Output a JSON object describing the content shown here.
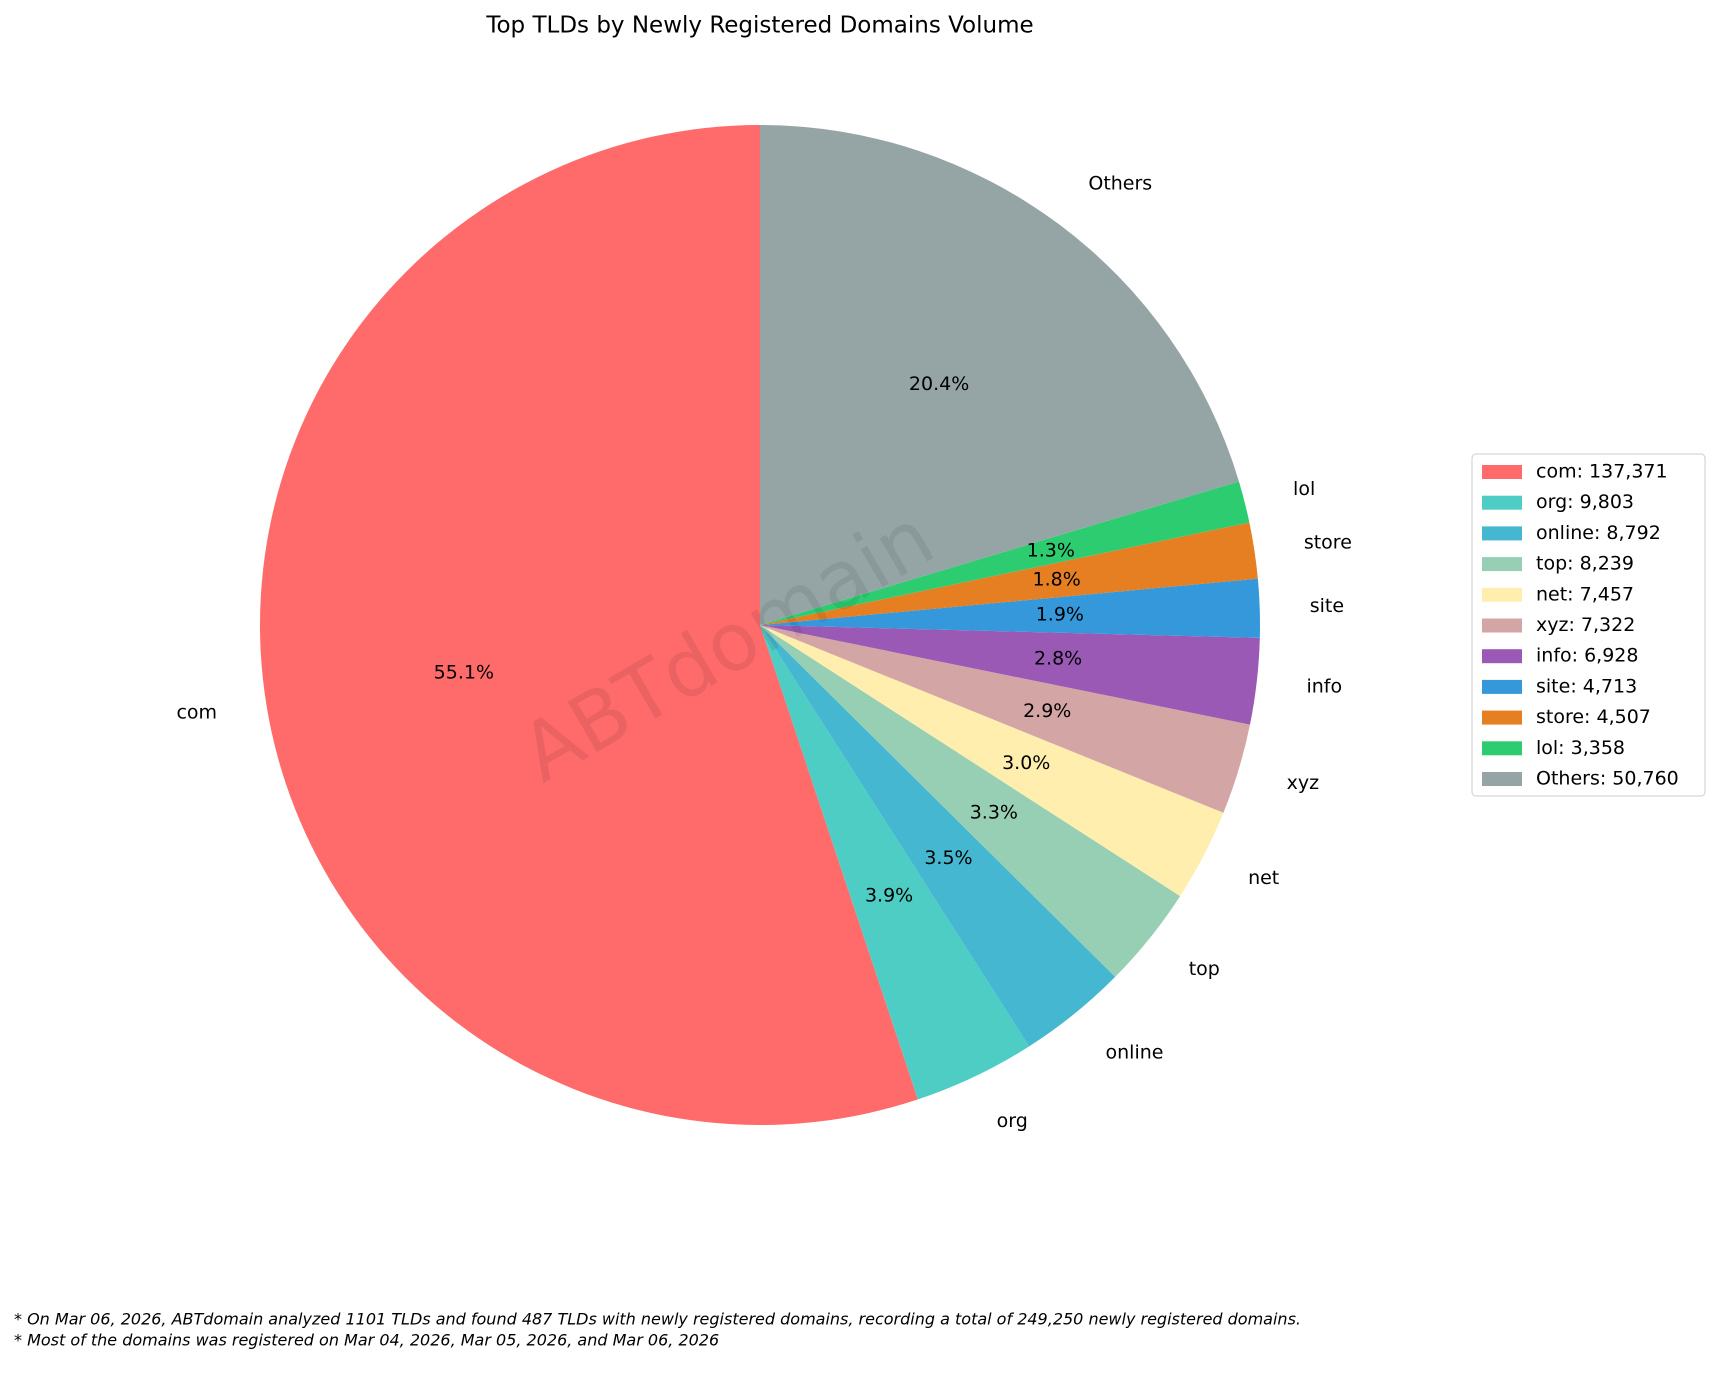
{
  "chart_data": {
    "type": "pie",
    "title": "Top TLDs by Newly Registered Domains Volume",
    "categories": [
      "com",
      "org",
      "online",
      "top",
      "net",
      "xyz",
      "info",
      "site",
      "store",
      "lol",
      "Others"
    ],
    "values": [
      137371,
      9803,
      8792,
      8239,
      7457,
      7322,
      6928,
      4713,
      4507,
      3358,
      50760
    ],
    "colors": [
      "#ff6b6b",
      "#4ecdc4",
      "#45b7d1",
      "#96cfb4",
      "#ffeead",
      "#d4a5a5",
      "#9b59b6",
      "#3498db",
      "#e67e22",
      "#2ecc71",
      "#95a5a6"
    ],
    "percents": [
      55.1,
      3.9,
      3.5,
      3.3,
      3.0,
      2.9,
      2.8,
      1.9,
      1.8,
      1.3,
      20.4
    ],
    "percent_labels": [
      "55.1%",
      "3.9%",
      "3.5%",
      "3.3%",
      "3.0%",
      "2.9%",
      "2.8%",
      "1.9%",
      "1.8%",
      "1.3%",
      "20.4%"
    ],
    "legend_labels": [
      "com: 137,371",
      "org: 9,803",
      "online: 8,792",
      "top: 8,239",
      "net: 7,457",
      "xyz: 7,322",
      "info: 6,928",
      "site: 4,713",
      "store: 4,507",
      "lol: 3,358",
      "Others: 50,760"
    ],
    "legend": "right",
    "watermark": "ABTdomain",
    "footnotes": [
      "* On Mar 06, 2026, ABTdomain analyzed 1101 TLDs and found 487 TLDs with newly registered domains, recording a total of 249,250 newly registered domains.",
      "* Most of the domains was registered on Mar 04, 2026, Mar 05, 2026, and Mar 06, 2026"
    ]
  }
}
